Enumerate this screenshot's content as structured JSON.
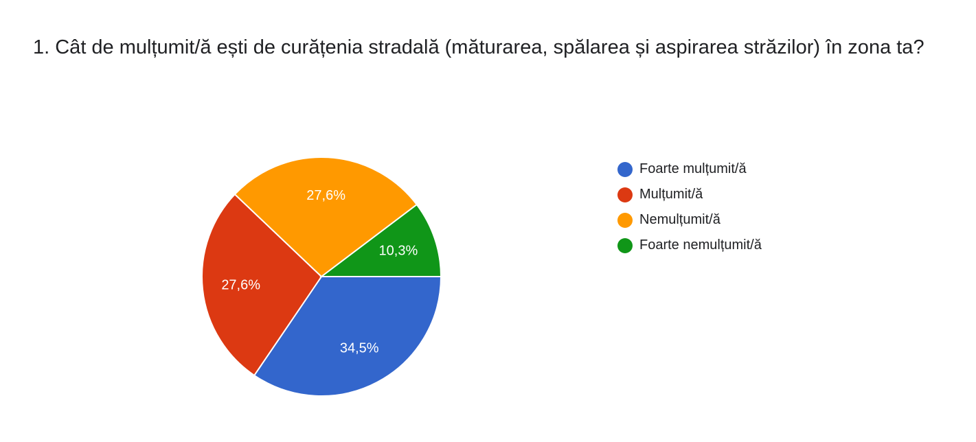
{
  "title": "1. Cât de mulțumit/ă ești de curățenia stradală (măturarea, spălarea și aspirarea străzilor) în zona ta?",
  "chart_data": {
    "type": "pie",
    "categories": [
      "Foarte mulțumit/ă",
      "Mulțumit/ă",
      "Nemulțumit/ă",
      "Foarte nemulțumit/ă"
    ],
    "values": [
      34.5,
      27.6,
      27.6,
      10.3
    ],
    "labels": [
      "34,5%",
      "27,6%",
      "27,6%",
      "10,3%"
    ],
    "colors": [
      "#3366cc",
      "#dc3912",
      "#ff9900",
      "#109618"
    ],
    "legend": "right"
  }
}
